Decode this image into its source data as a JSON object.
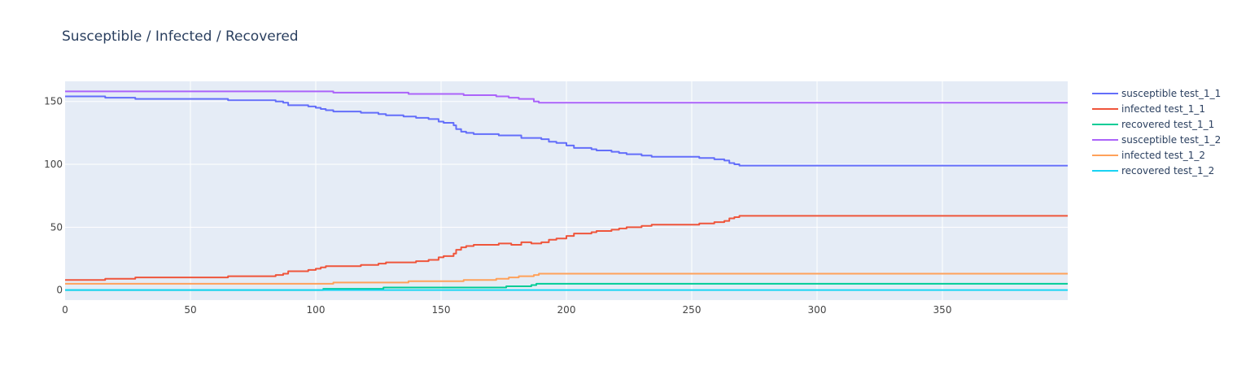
{
  "chart_data": {
    "type": "line",
    "title": "Susceptible / Infected / Recovered",
    "xlabel": "",
    "ylabel": "",
    "xlim": [
      0,
      400
    ],
    "ylim": [
      -8,
      166
    ],
    "x_ticks": [
      0,
      50,
      100,
      150,
      200,
      250,
      300,
      350
    ],
    "y_ticks": [
      0,
      50,
      100,
      150
    ],
    "grid": true,
    "legend_position": "top-right",
    "line_shape": "step",
    "series": [
      {
        "name": "susceptible test_1_1",
        "color": "#636efa",
        "points": [
          [
            0,
            154
          ],
          [
            16,
            153
          ],
          [
            28,
            152
          ],
          [
            65,
            151
          ],
          [
            84,
            150
          ],
          [
            87,
            149
          ],
          [
            89,
            147
          ],
          [
            97,
            146
          ],
          [
            100,
            145
          ],
          [
            102,
            144
          ],
          [
            104,
            143
          ],
          [
            107,
            142
          ],
          [
            118,
            141
          ],
          [
            125,
            140
          ],
          [
            128,
            139
          ],
          [
            135,
            138
          ],
          [
            140,
            137
          ],
          [
            145,
            136
          ],
          [
            149,
            134
          ],
          [
            151,
            133
          ],
          [
            155,
            131
          ],
          [
            156,
            128
          ],
          [
            158,
            126
          ],
          [
            160,
            125
          ],
          [
            163,
            124
          ],
          [
            173,
            123
          ],
          [
            182,
            121
          ],
          [
            190,
            120
          ],
          [
            193,
            118
          ],
          [
            196,
            117
          ],
          [
            200,
            115
          ],
          [
            203,
            113
          ],
          [
            210,
            112
          ],
          [
            212,
            111
          ],
          [
            218,
            110
          ],
          [
            221,
            109
          ],
          [
            224,
            108
          ],
          [
            230,
            107
          ],
          [
            234,
            106
          ],
          [
            253,
            105
          ],
          [
            259,
            104
          ],
          [
            263,
            103
          ],
          [
            265,
            101
          ],
          [
            267,
            100
          ],
          [
            269,
            99
          ],
          [
            400,
            99
          ]
        ]
      },
      {
        "name": "infected test_1_1",
        "color": "#ef553b",
        "points": [
          [
            0,
            8
          ],
          [
            16,
            9
          ],
          [
            28,
            10
          ],
          [
            65,
            11
          ],
          [
            84,
            12
          ],
          [
            87,
            13
          ],
          [
            89,
            15
          ],
          [
            97,
            16
          ],
          [
            100,
            17
          ],
          [
            102,
            18
          ],
          [
            104,
            19
          ],
          [
            107,
            19
          ],
          [
            118,
            20
          ],
          [
            125,
            21
          ],
          [
            128,
            22
          ],
          [
            135,
            22
          ],
          [
            140,
            23
          ],
          [
            145,
            24
          ],
          [
            149,
            26
          ],
          [
            151,
            27
          ],
          [
            155,
            29
          ],
          [
            156,
            32
          ],
          [
            158,
            34
          ],
          [
            160,
            35
          ],
          [
            163,
            36
          ],
          [
            173,
            37
          ],
          [
            178,
            36
          ],
          [
            182,
            38
          ],
          [
            186,
            37
          ],
          [
            190,
            38
          ],
          [
            193,
            40
          ],
          [
            196,
            41
          ],
          [
            200,
            43
          ],
          [
            203,
            45
          ],
          [
            210,
            46
          ],
          [
            212,
            47
          ],
          [
            218,
            48
          ],
          [
            221,
            49
          ],
          [
            224,
            50
          ],
          [
            230,
            51
          ],
          [
            234,
            52
          ],
          [
            253,
            53
          ],
          [
            259,
            54
          ],
          [
            263,
            55
          ],
          [
            265,
            57
          ],
          [
            267,
            58
          ],
          [
            269,
            59
          ],
          [
            400,
            59
          ]
        ]
      },
      {
        "name": "recovered test_1_1",
        "color": "#00cc96",
        "points": [
          [
            0,
            0
          ],
          [
            103,
            1
          ],
          [
            127,
            2
          ],
          [
            176,
            3
          ],
          [
            186,
            4
          ],
          [
            188,
            5
          ],
          [
            400,
            5
          ]
        ]
      },
      {
        "name": "susceptible test_1_2",
        "color": "#ab63fa",
        "points": [
          [
            0,
            158
          ],
          [
            107,
            157
          ],
          [
            137,
            156
          ],
          [
            159,
            155
          ],
          [
            172,
            154
          ],
          [
            177,
            153
          ],
          [
            181,
            152
          ],
          [
            187,
            150
          ],
          [
            189,
            149
          ],
          [
            400,
            149
          ]
        ]
      },
      {
        "name": "infected test_1_2",
        "color": "#ffa15a",
        "points": [
          [
            0,
            5
          ],
          [
            107,
            6
          ],
          [
            137,
            7
          ],
          [
            159,
            8
          ],
          [
            172,
            9
          ],
          [
            177,
            10
          ],
          [
            181,
            11
          ],
          [
            187,
            12
          ],
          [
            189,
            13
          ],
          [
            400,
            13
          ]
        ]
      },
      {
        "name": "recovered test_1_2",
        "color": "#19d3f3",
        "points": [
          [
            0,
            0
          ],
          [
            400,
            0
          ]
        ]
      }
    ]
  }
}
